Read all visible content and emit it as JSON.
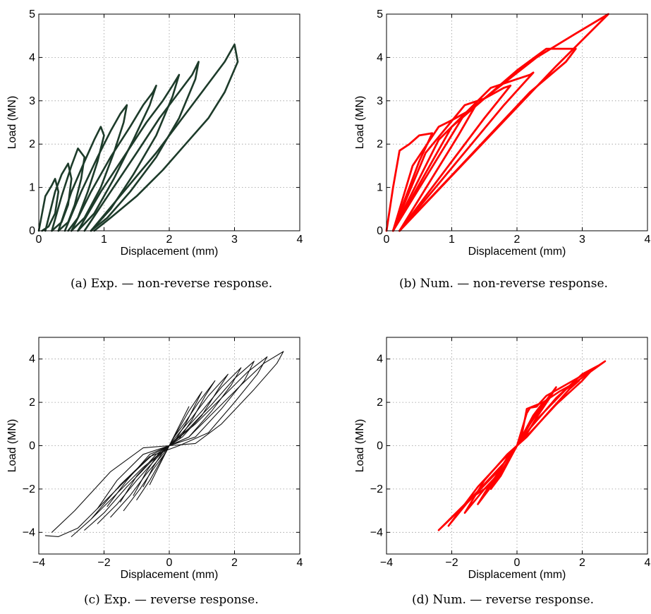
{
  "captions": {
    "a": "(a) Exp. — non-reverse response.",
    "b": "(b) Num. — non-reverse response.",
    "c": "(c) Exp. — reverse response.",
    "d": "(d) Num. — reverse response."
  },
  "chart_data": [
    {
      "id": "a",
      "type": "line",
      "xlabel": "Displacement (mm)",
      "ylabel": "Load (MN)",
      "xlim": [
        0,
        4
      ],
      "ylim": [
        0,
        5
      ],
      "xticks": [
        "0",
        "1",
        "2",
        "3",
        "4"
      ],
      "yticks": [
        "0",
        "1",
        "2",
        "3",
        "4",
        "5"
      ],
      "grid": true,
      "color": "#1d3b2a",
      "series": [
        {
          "x": [
            0.0,
            0.1,
            0.2,
            0.25,
            0.3,
            0.25,
            0.15,
            0.05
          ],
          "y": [
            0.0,
            0.8,
            1.05,
            1.2,
            0.9,
            0.4,
            0.1,
            0.0
          ]
        },
        {
          "x": [
            0.1,
            0.25,
            0.35,
            0.45,
            0.5,
            0.45,
            0.35,
            0.2
          ],
          "y": [
            0.0,
            0.9,
            1.3,
            1.55,
            1.2,
            0.6,
            0.2,
            0.0
          ]
        },
        {
          "x": [
            0.2,
            0.35,
            0.5,
            0.6,
            0.7,
            0.65,
            0.55,
            0.45,
            0.3
          ],
          "y": [
            0.0,
            0.8,
            1.5,
            1.9,
            1.7,
            1.2,
            0.6,
            0.2,
            0.0
          ]
        },
        {
          "x": [
            0.3,
            0.5,
            0.7,
            0.85,
            0.95,
            1.0,
            0.9,
            0.75,
            0.6,
            0.45
          ],
          "y": [
            0.0,
            0.9,
            1.6,
            2.1,
            2.4,
            2.2,
            1.6,
            0.9,
            0.3,
            0.0
          ]
        },
        {
          "x": [
            0.4,
            0.65,
            0.9,
            1.1,
            1.25,
            1.35,
            1.3,
            1.15,
            0.95,
            0.7,
            0.5
          ],
          "y": [
            0.0,
            0.9,
            1.7,
            2.3,
            2.7,
            2.9,
            2.5,
            1.8,
            1.0,
            0.3,
            0.0
          ]
        },
        {
          "x": [
            0.5,
            0.8,
            1.1,
            1.4,
            1.6,
            1.75,
            1.8,
            1.7,
            1.45,
            1.15,
            0.85,
            0.6
          ],
          "y": [
            0.0,
            0.9,
            1.7,
            2.4,
            2.9,
            3.2,
            3.35,
            2.9,
            2.1,
            1.2,
            0.4,
            0.0
          ]
        },
        {
          "x": [
            0.6,
            0.95,
            1.3,
            1.65,
            1.9,
            2.05,
            2.15,
            2.05,
            1.8,
            1.45,
            1.1,
            0.8
          ],
          "y": [
            0.0,
            0.9,
            1.7,
            2.5,
            3.0,
            3.35,
            3.6,
            3.1,
            2.2,
            1.3,
            0.5,
            0.0
          ]
        },
        {
          "x": [
            0.7,
            1.1,
            1.5,
            1.85,
            2.15,
            2.35,
            2.45,
            2.4,
            2.15,
            1.8,
            1.4,
            1.05,
            0.8
          ],
          "y": [
            0.0,
            0.9,
            1.8,
            2.6,
            3.2,
            3.6,
            3.9,
            3.5,
            2.6,
            1.7,
            0.9,
            0.3,
            0.0
          ]
        },
        {
          "x": [
            0.8,
            1.3,
            1.8,
            2.2,
            2.55,
            2.85,
            3.0,
            3.05,
            2.85,
            2.6,
            2.25,
            1.9,
            1.5,
            1.1,
            0.85
          ],
          "y": [
            0.0,
            0.9,
            1.8,
            2.6,
            3.3,
            3.9,
            4.3,
            3.9,
            3.2,
            2.6,
            2.0,
            1.4,
            0.8,
            0.3,
            0.0
          ]
        }
      ]
    },
    {
      "id": "b",
      "type": "line",
      "xlabel": "Displacement (mm)",
      "ylabel": "Load (MN)",
      "xlim": [
        0,
        4
      ],
      "ylim": [
        0,
        5
      ],
      "xticks": [
        "0",
        "1",
        "2",
        "3",
        "4"
      ],
      "yticks": [
        "0",
        "1",
        "2",
        "3",
        "4",
        "5"
      ],
      "grid": true,
      "color": "#ff0000",
      "series": [
        {
          "x": [
            0.0,
            0.1,
            0.2,
            0.35,
            0.5,
            0.7,
            0.5,
            0.1
          ],
          "y": [
            0.0,
            1.0,
            1.85,
            2.0,
            2.2,
            2.25,
            1.6,
            0.0
          ]
        },
        {
          "x": [
            0.1,
            0.4,
            0.8,
            1.0,
            1.3,
            1.35,
            1.1,
            0.2
          ],
          "y": [
            0.0,
            1.5,
            2.4,
            2.55,
            2.8,
            2.85,
            2.2,
            0.0
          ]
        },
        {
          "x": [
            0.1,
            0.6,
            1.2,
            1.5,
            1.8,
            1.9,
            1.5,
            0.2
          ],
          "y": [
            0.0,
            1.8,
            2.9,
            3.05,
            3.3,
            3.35,
            2.6,
            0.0
          ]
        },
        {
          "x": [
            0.1,
            0.8,
            1.6,
            2.0,
            2.2,
            2.25,
            1.8,
            0.2
          ],
          "y": [
            0.0,
            2.1,
            3.3,
            3.5,
            3.6,
            3.65,
            2.9,
            0.0
          ]
        },
        {
          "x": [
            0.1,
            1.0,
            2.0,
            2.45,
            2.9,
            2.75,
            2.2,
            0.2
          ],
          "y": [
            0.0,
            2.4,
            3.7,
            4.2,
            4.2,
            3.9,
            3.2,
            0.0
          ]
        },
        {
          "x": [
            0.1,
            1.2,
            2.3,
            2.9,
            3.4,
            3.2,
            2.6,
            0.2
          ],
          "y": [
            0.0,
            2.7,
            4.0,
            4.55,
            5.0,
            4.7,
            3.8,
            0.0
          ]
        }
      ]
    },
    {
      "id": "c",
      "type": "line",
      "xlabel": "Displacement (mm)",
      "ylabel": "Load (MN)",
      "xlim": [
        -4,
        4
      ],
      "ylim": [
        -5,
        5
      ],
      "xticks": [
        "−4",
        "−2",
        "0",
        "2",
        "4"
      ],
      "yticks": [
        "−4",
        "−2",
        "0",
        "2",
        "4"
      ],
      "grid": true,
      "color": "#111111",
      "series": [
        {
          "x": [
            -3.8,
            -3.4,
            -2.8,
            -2.0,
            -1.2,
            -0.5,
            0.0,
            0.6,
            1.4,
            2.2,
            2.9,
            3.5,
            3.3,
            2.6,
            1.6,
            0.8,
            0.0,
            -0.8,
            -1.8,
            -2.9,
            -3.6
          ],
          "y": [
            -4.15,
            -4.2,
            -3.8,
            -2.6,
            -1.4,
            -0.4,
            0.0,
            0.4,
            1.6,
            2.8,
            3.8,
            4.35,
            3.8,
            2.6,
            1.0,
            0.1,
            0.0,
            -0.1,
            -1.2,
            -3.0,
            -4.0
          ]
        },
        {
          "x": [
            -3.0,
            -2.4,
            -1.6,
            -0.8,
            0.0,
            0.8,
            1.6,
            2.4,
            3.0,
            2.7,
            2.0,
            1.2,
            0.3,
            -0.6,
            -1.5,
            -2.4
          ],
          "y": [
            -4.2,
            -3.4,
            -2.2,
            -1.0,
            0.0,
            1.0,
            2.2,
            3.4,
            4.1,
            3.3,
            2.0,
            0.6,
            0.0,
            -0.5,
            -1.8,
            -3.4
          ]
        },
        {
          "x": [
            -2.6,
            -2.0,
            -1.3,
            -0.6,
            0.0,
            0.6,
            1.3,
            2.0,
            2.6,
            2.3,
            1.6,
            0.8,
            0.0,
            -0.8,
            -1.6,
            -2.2
          ],
          "y": [
            -3.9,
            -3.1,
            -1.9,
            -0.8,
            0.0,
            0.8,
            1.9,
            3.1,
            3.9,
            3.0,
            1.7,
            0.4,
            0.0,
            -0.4,
            -1.6,
            -2.9
          ]
        },
        {
          "x": [
            -2.2,
            -1.6,
            -1.0,
            -0.4,
            0.0,
            0.4,
            1.0,
            1.6,
            2.2,
            1.9,
            1.3,
            0.6,
            0.0,
            -0.6,
            -1.3,
            -1.9
          ],
          "y": [
            -3.6,
            -2.7,
            -1.6,
            -0.6,
            0.0,
            0.6,
            1.6,
            2.7,
            3.6,
            2.8,
            1.6,
            0.4,
            0.0,
            -0.4,
            -1.6,
            -2.8
          ]
        },
        {
          "x": [
            -1.8,
            -1.2,
            -0.7,
            -0.2,
            0.0,
            0.2,
            0.7,
            1.2,
            1.8,
            1.5,
            1.0,
            0.4,
            0.0,
            -0.4,
            -1.0,
            -1.5
          ],
          "y": [
            -3.3,
            -2.3,
            -1.3,
            -0.4,
            0.0,
            0.4,
            1.3,
            2.3,
            3.3,
            2.6,
            1.4,
            0.4,
            0.0,
            -0.4,
            -1.4,
            -2.6
          ]
        },
        {
          "x": [
            -1.4,
            -0.9,
            -0.5,
            -0.1,
            0.0,
            0.1,
            0.5,
            0.9,
            1.4,
            1.1,
            0.7,
            0.3,
            0.0,
            -0.3,
            -0.7,
            -1.1
          ],
          "y": [
            -3.0,
            -2.0,
            -1.1,
            -0.3,
            0.0,
            0.3,
            1.1,
            2.0,
            3.0,
            2.3,
            1.2,
            0.3,
            0.0,
            -0.3,
            -1.2,
            -2.3
          ]
        },
        {
          "x": [
            -1.0,
            -0.6,
            -0.3,
            0.0,
            0.3,
            0.6,
            1.0,
            0.8,
            0.5,
            0.2,
            0.0,
            -0.2,
            -0.5,
            -0.8
          ],
          "y": [
            -2.5,
            -1.6,
            -0.8,
            0.0,
            0.8,
            1.6,
            2.5,
            1.9,
            1.0,
            0.3,
            0.0,
            -0.3,
            -1.0,
            -1.9
          ]
        },
        {
          "x": [
            -0.6,
            -0.3,
            0.0,
            0.3,
            0.6,
            0.4,
            0.0,
            -0.4,
            -0.6
          ],
          "y": [
            -1.8,
            -0.9,
            0.0,
            0.9,
            1.8,
            1.2,
            0.0,
            -1.2,
            -1.8
          ]
        }
      ]
    },
    {
      "id": "d",
      "type": "line",
      "xlabel": "Displacement (mm)",
      "ylabel": "Load (MN)",
      "xlim": [
        -4,
        4
      ],
      "ylim": [
        -5,
        5
      ],
      "xticks": [
        "−4",
        "−2",
        "0",
        "2",
        "4"
      ],
      "yticks": [
        "−4",
        "−2",
        "0",
        "2",
        "4"
      ],
      "grid": true,
      "color": "#ff0000",
      "series": [
        {
          "x": [
            -2.4,
            -1.5,
            -0.6,
            0.0,
            0.6,
            1.5,
            2.7,
            2.5,
            2.0,
            1.2,
            0.4,
            0.0,
            -0.4,
            -1.2,
            -2.0,
            -2.4
          ],
          "y": [
            -3.9,
            -2.6,
            -1.2,
            0.0,
            1.2,
            2.6,
            3.9,
            3.7,
            3.3,
            2.2,
            0.8,
            0.0,
            -0.8,
            -2.1,
            -3.3,
            -3.9
          ]
        },
        {
          "x": [
            -2.1,
            -1.4,
            -0.9,
            -0.3,
            0.0,
            0.3,
            0.4,
            0.6,
            0.9,
            1.6,
            2.3,
            2.0,
            1.2,
            0.4,
            0.0,
            -0.4,
            -1.2,
            -2.1
          ],
          "y": [
            -3.7,
            -2.4,
            -1.9,
            -0.8,
            0.0,
            1.5,
            1.75,
            1.8,
            2.3,
            2.9,
            3.5,
            3.0,
            1.9,
            0.6,
            0.0,
            -0.6,
            -1.9,
            -3.7
          ]
        },
        {
          "x": [
            -1.6,
            -1.0,
            -0.5,
            -0.15,
            0.0,
            0.15,
            0.3,
            0.8,
            1.3,
            1.9,
            1.6,
            1.0,
            0.3,
            0.0,
            -0.3,
            -1.0,
            -1.6
          ],
          "y": [
            -3.1,
            -2.0,
            -1.2,
            -0.4,
            0.0,
            0.5,
            1.7,
            2.0,
            2.5,
            3.0,
            2.6,
            1.6,
            0.4,
            0.0,
            -0.4,
            -1.6,
            -3.1
          ]
        },
        {
          "x": [
            -1.2,
            -0.8,
            -0.4,
            0.0,
            0.4,
            0.8,
            1.2,
            1.0,
            0.6,
            0.2,
            0.0,
            -0.2,
            -0.6,
            -1.0,
            -1.2
          ],
          "y": [
            -2.7,
            -1.9,
            -1.0,
            0.0,
            1.0,
            1.9,
            2.7,
            2.2,
            1.3,
            0.3,
            0.0,
            -0.3,
            -1.3,
            -2.2,
            -2.7
          ]
        },
        {
          "x": [
            -0.8,
            -0.5,
            -0.2,
            0.0,
            0.2,
            0.5,
            0.8,
            0.5,
            0.0,
            -0.5,
            -0.8
          ],
          "y": [
            -2.0,
            -1.3,
            -0.5,
            0.0,
            0.5,
            1.3,
            2.0,
            1.4,
            0.0,
            -1.4,
            -2.0
          ]
        }
      ]
    }
  ]
}
